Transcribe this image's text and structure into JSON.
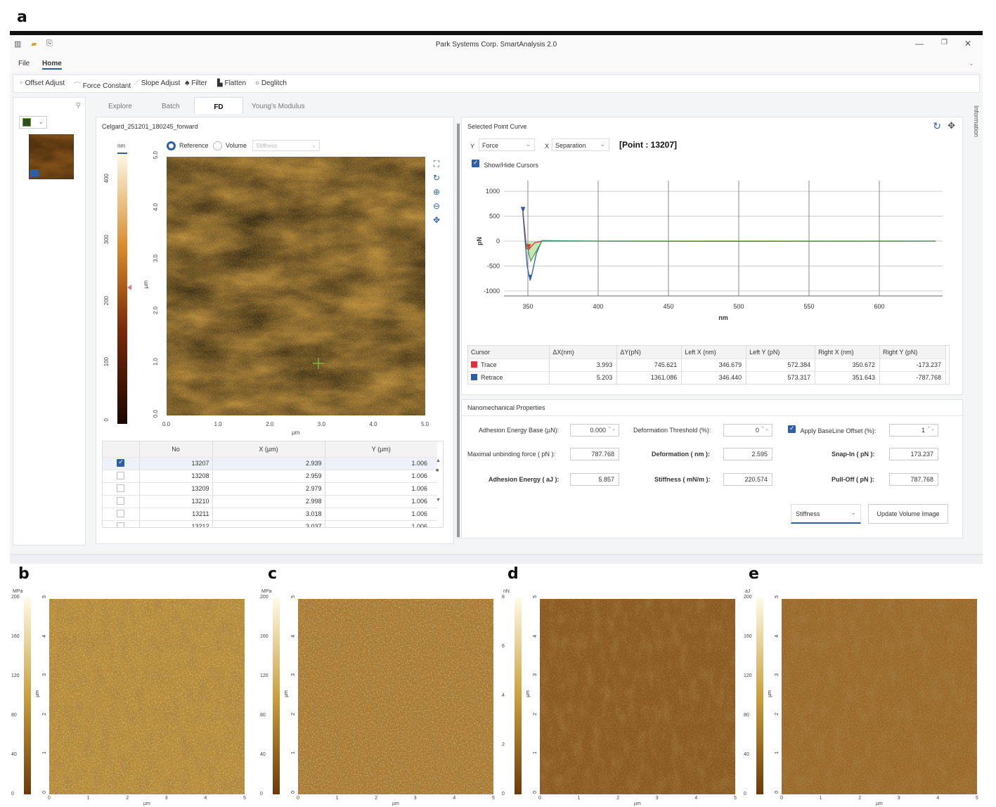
{
  "panel_labels": {
    "a": "a",
    "b": "b",
    "c": "c",
    "d": "d",
    "e": "e"
  },
  "window": {
    "title": "Park Systems Corp. SmartAnalysis 2.0"
  },
  "menu": {
    "file": "File",
    "home": "Home"
  },
  "toolbar": {
    "offset_adjust": "Offset Adjust",
    "force_constant": "Force Constant",
    "slope_adjust": "Slope Adjust",
    "filter": "Filter",
    "flatten": "Flatten",
    "deglitch": "Deglitch"
  },
  "tabs": [
    "Explore",
    "Batch",
    "FD",
    "Young's Modulus"
  ],
  "side_label": "Information",
  "image_panel": {
    "file_name": "Celgard_251201_180245_forward",
    "reference_label": "Reference",
    "volume_label": "Volume",
    "volume_select": "Stiffness",
    "colorbar_unit": "nm",
    "colorbar_ticks": [
      "400",
      "300",
      "200",
      "100",
      "0"
    ],
    "y_ticks": [
      "5.0",
      "4.0",
      "3.0",
      "2.0",
      "1.0",
      "0.0"
    ],
    "x_ticks": [
      "0.0",
      "1.0",
      "2.0",
      "3.0",
      "4.0",
      "5.0"
    ],
    "y_unit": "µm",
    "x_unit": "µm"
  },
  "point_table": {
    "headers": [
      "No",
      "X (µm)",
      "Y (µm)"
    ],
    "rows": [
      {
        "no": "13207",
        "x": "2.939",
        "y": "1.006",
        "checked": true
      },
      {
        "no": "13208",
        "x": "2.959",
        "y": "1.006",
        "checked": false
      },
      {
        "no": "13209",
        "x": "2.979",
        "y": "1.006",
        "checked": false
      },
      {
        "no": "13210",
        "x": "2.998",
        "y": "1.006",
        "checked": false
      },
      {
        "no": "13211",
        "x": "3.018",
        "y": "1.006",
        "checked": false
      },
      {
        "no": "13212",
        "x": "3.037",
        "y": "1.006",
        "checked": false
      }
    ]
  },
  "curve_panel": {
    "title": "Selected Point Curve",
    "y_axis_label": "Y",
    "y_select": "Force",
    "x_axis_label": "X",
    "x_select": "Separation",
    "point_label": "[Point : 13207]",
    "show_cursors": "Show/Hide Cursors"
  },
  "chart_data": {
    "type": "line",
    "xlabel": "nm",
    "ylabel": "pN",
    "xlim": [
      333,
      645
    ],
    "ylim": [
      -1100,
      1100
    ],
    "x_ticks": [
      350,
      400,
      450,
      500,
      550,
      600
    ],
    "y_ticks": [
      1000,
      500,
      0,
      -500,
      -1000
    ],
    "grid": true,
    "series": [
      {
        "color": "#d23b3b",
        "x": [
          346.5,
          347.5,
          349,
          350.6,
          352,
          355,
          360,
          400,
          500,
          640
        ],
        "y": [
          600,
          300,
          -150,
          -173,
          -120,
          -30,
          0,
          0,
          0,
          0
        ]
      },
      {
        "color": "#2d5fa8",
        "x": [
          346.4,
          347.5,
          349.5,
          351.6,
          353,
          356,
          360,
          400,
          500,
          640
        ],
        "y": [
          573,
          200,
          -500,
          -788,
          -650,
          -250,
          10,
          0,
          -5,
          0
        ]
      },
      {
        "color": "#4ea84e",
        "x": [
          349,
          352,
          356,
          360,
          400,
          500,
          640
        ],
        "y": [
          -50,
          -400,
          -200,
          0,
          0,
          0,
          0
        ]
      }
    ]
  },
  "cursor_table": {
    "headers": [
      "Cursor",
      "ΔX(nm)",
      "ΔY(pN)",
      "Left X (nm)",
      "Left Y (pN)",
      "Right X (nm)",
      "Right Y (pN)"
    ],
    "rows": [
      {
        "name": "Trace",
        "color": "#d23b3b",
        "dx": "3.993",
        "dy": "745.621",
        "lx": "346.679",
        "ly": "572.384",
        "rx": "350.672",
        "ry": "-173.237"
      },
      {
        "name": "Retrace",
        "color": "#2d5fa8",
        "dx": "5.203",
        "dy": "1361.086",
        "lx": "346.440",
        "ly": "573.317",
        "rx": "351.643",
        "ry": "-787.768"
      }
    ]
  },
  "nano": {
    "title": "Nanomechanical Properties",
    "adhesion_base_label": "Adhesion Energy Base (µN):",
    "adhesion_base_value": "0.000",
    "deformation_threshold_label": "Deformation Threshold (%):",
    "deformation_threshold_value": "0",
    "apply_baseline_label": "Apply BaseLine Offset (%):",
    "apply_baseline_value": "1",
    "max_unbinding_label": "Maximal unbinding force ( pN ):",
    "max_unbinding_value": "787.768",
    "deformation_label": "Deformation ( nm ):",
    "deformation_value": "2.595",
    "snapin_label": "Snap-In ( pN ):",
    "snapin_value": "173.237",
    "adhesion_energy_label": "Adhesion Energy ( aJ ):",
    "adhesion_energy_value": "5.857",
    "stiffness_label": "Stiffness ( mN/m ):",
    "stiffness_value": "220.574",
    "pulloff_label": "Pull-Off ( pN ):",
    "pulloff_value": "787.768",
    "select_value": "Stiffness",
    "update_button": "Update Volume Image"
  },
  "maps": [
    {
      "unit": "MPa",
      "ticks": [
        "200",
        "160",
        "120",
        "80",
        "40",
        "0"
      ]
    },
    {
      "unit": "MPa",
      "ticks": [
        "200",
        "160",
        "120",
        "80",
        "40",
        "0"
      ]
    },
    {
      "unit": "nN",
      "ticks": [
        "8",
        "6",
        "4",
        "2",
        "0"
      ]
    },
    {
      "unit": "aJ",
      "ticks": [
        "200",
        "160",
        "120",
        "80",
        "40",
        "0"
      ]
    }
  ],
  "map_axes": {
    "y_ticks": [
      "5",
      "4",
      "3",
      "2",
      "1",
      "0"
    ],
    "x_ticks": [
      "0",
      "1",
      "2",
      "3",
      "4",
      "5"
    ],
    "unit": "µm"
  }
}
